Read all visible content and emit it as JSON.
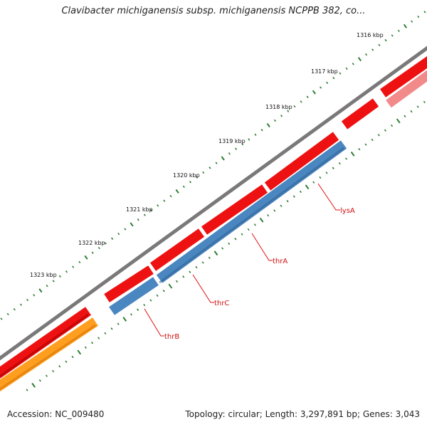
{
  "title": "Clavibacter michiganensis subsp. michiganensis NCPPB 382, co...",
  "footer": {
    "accession": "Accession: NC_009480",
    "summary": "Topology: circular; Length: 3,297,891 bp; Genes: 3,043"
  },
  "ruler": {
    "tick_color": "#2e7d32",
    "labels": [
      "1316 kbp",
      "1317 kbp",
      "1318 kbp",
      "1319 kbp",
      "1320 kbp",
      "1321 kbp",
      "1322 kbp",
      "1323 kbp"
    ]
  },
  "colors": {
    "backbone": "#7a7878",
    "forward_gene": "#ee1111",
    "reverse_gene": "#4a86c0",
    "orange_track": "#ff9e1f",
    "light_red_track": "#f28a8a",
    "label_line": "#e01010"
  },
  "gene_labels": [
    "lysA",
    "thrA",
    "thrC",
    "thrB"
  ]
}
